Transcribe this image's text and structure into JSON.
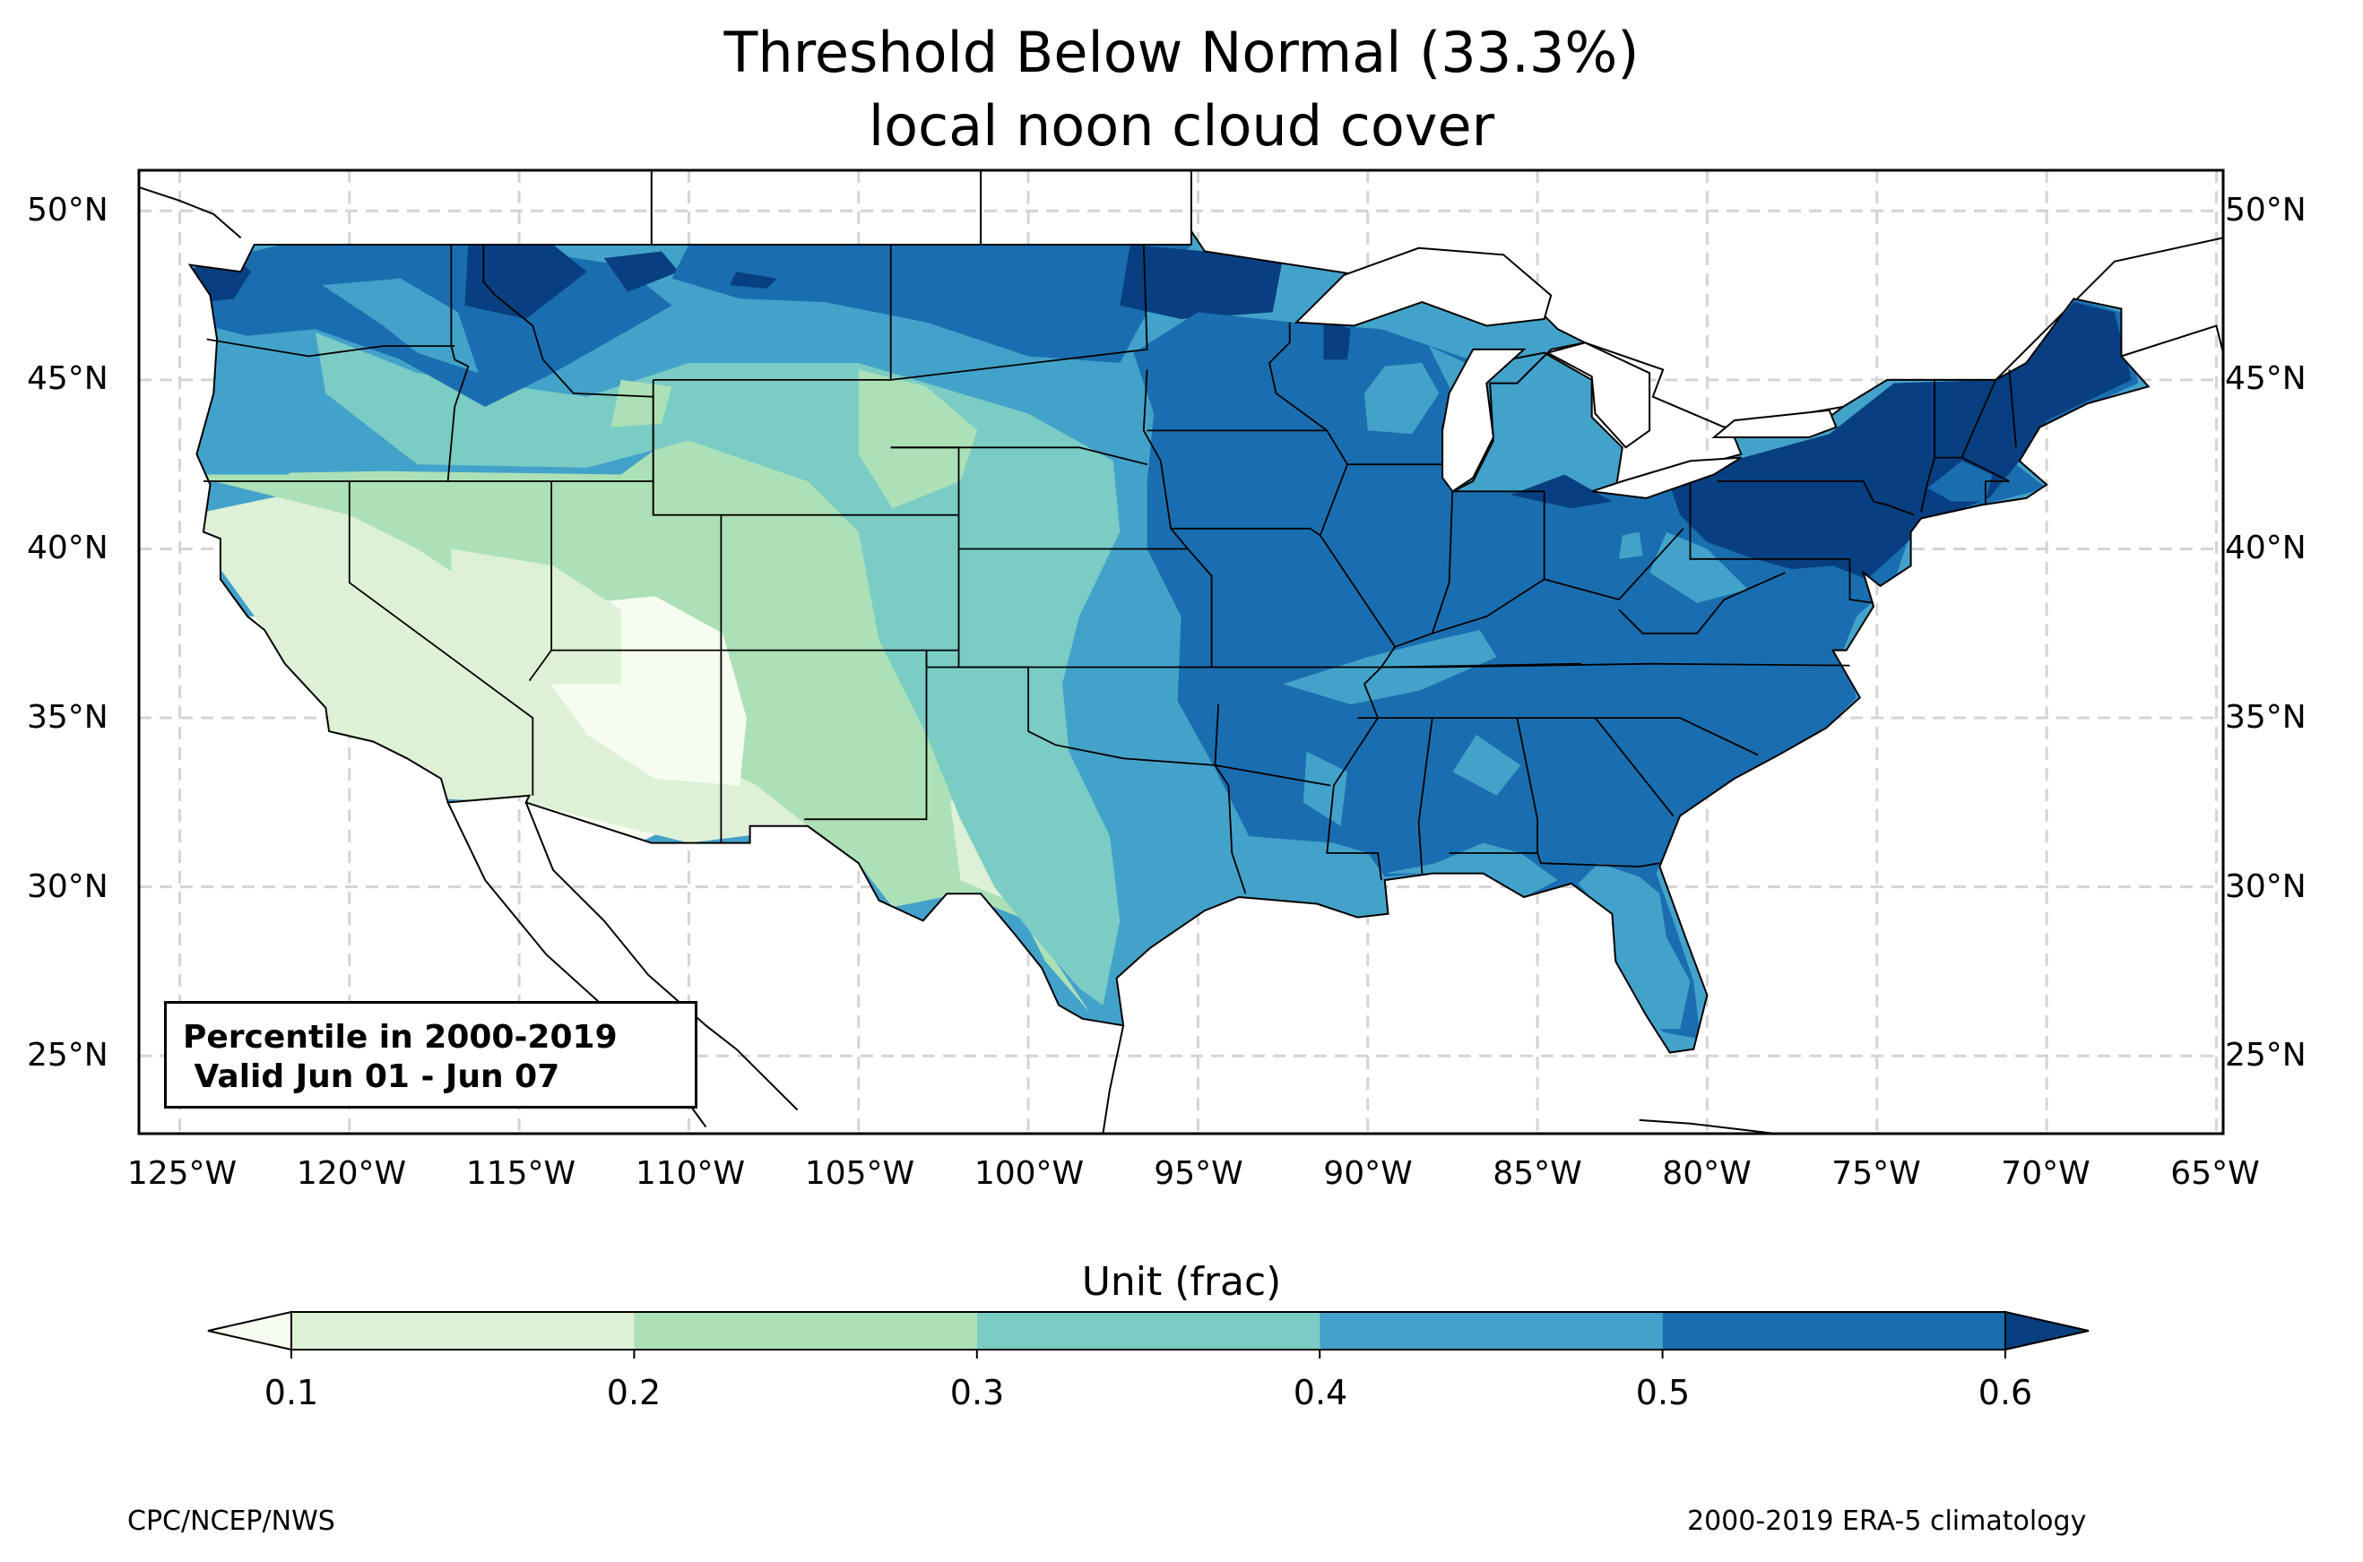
{
  "title": {
    "line1": "Threshold Below Normal (33.3%)",
    "line2": "local noon cloud cover"
  },
  "map": {
    "projection": "PlateCarree",
    "lon_range": [
      -126.2,
      -64.8
    ],
    "lat_range": [
      22.7,
      51.2
    ],
    "lon_ticks": [
      "125°W",
      "120°W",
      "115°W",
      "110°W",
      "105°W",
      "100°W",
      "95°W",
      "90°W",
      "85°W",
      "80°W",
      "75°W",
      "70°W",
      "65°W"
    ],
    "lat_ticks": [
      "25°N",
      "30°N",
      "35°N",
      "40°N",
      "45°N",
      "50°N"
    ],
    "gridlines": true,
    "gridline_style": "dashed light grey",
    "region": "CONUS",
    "field": "33.3% percentile of local noon cloud cover"
  },
  "info_box": {
    "line1": "Percentile in 2000-2019",
    "line2": " Valid Jun 01 - Jun 07"
  },
  "colorbar": {
    "label": "Unit (frac)",
    "ticks": [
      "0.1",
      "0.2",
      "0.3",
      "0.4",
      "0.5",
      "0.6"
    ],
    "levels": [
      0.1,
      0.2,
      0.3,
      0.4,
      0.5,
      0.6
    ],
    "colors": {
      "under": "#f7fcf0",
      "b1": "#ddf1d6",
      "b2": "#ace0b6",
      "b3": "#7accc4",
      "b4": "#43a2ca",
      "b5": "#1a6eb0",
      "over": "#083f80"
    },
    "extend": "both"
  },
  "footer": {
    "left": "CPC/NCEP/NWS",
    "right": "2000-2019 ERA-5 climatology"
  }
}
